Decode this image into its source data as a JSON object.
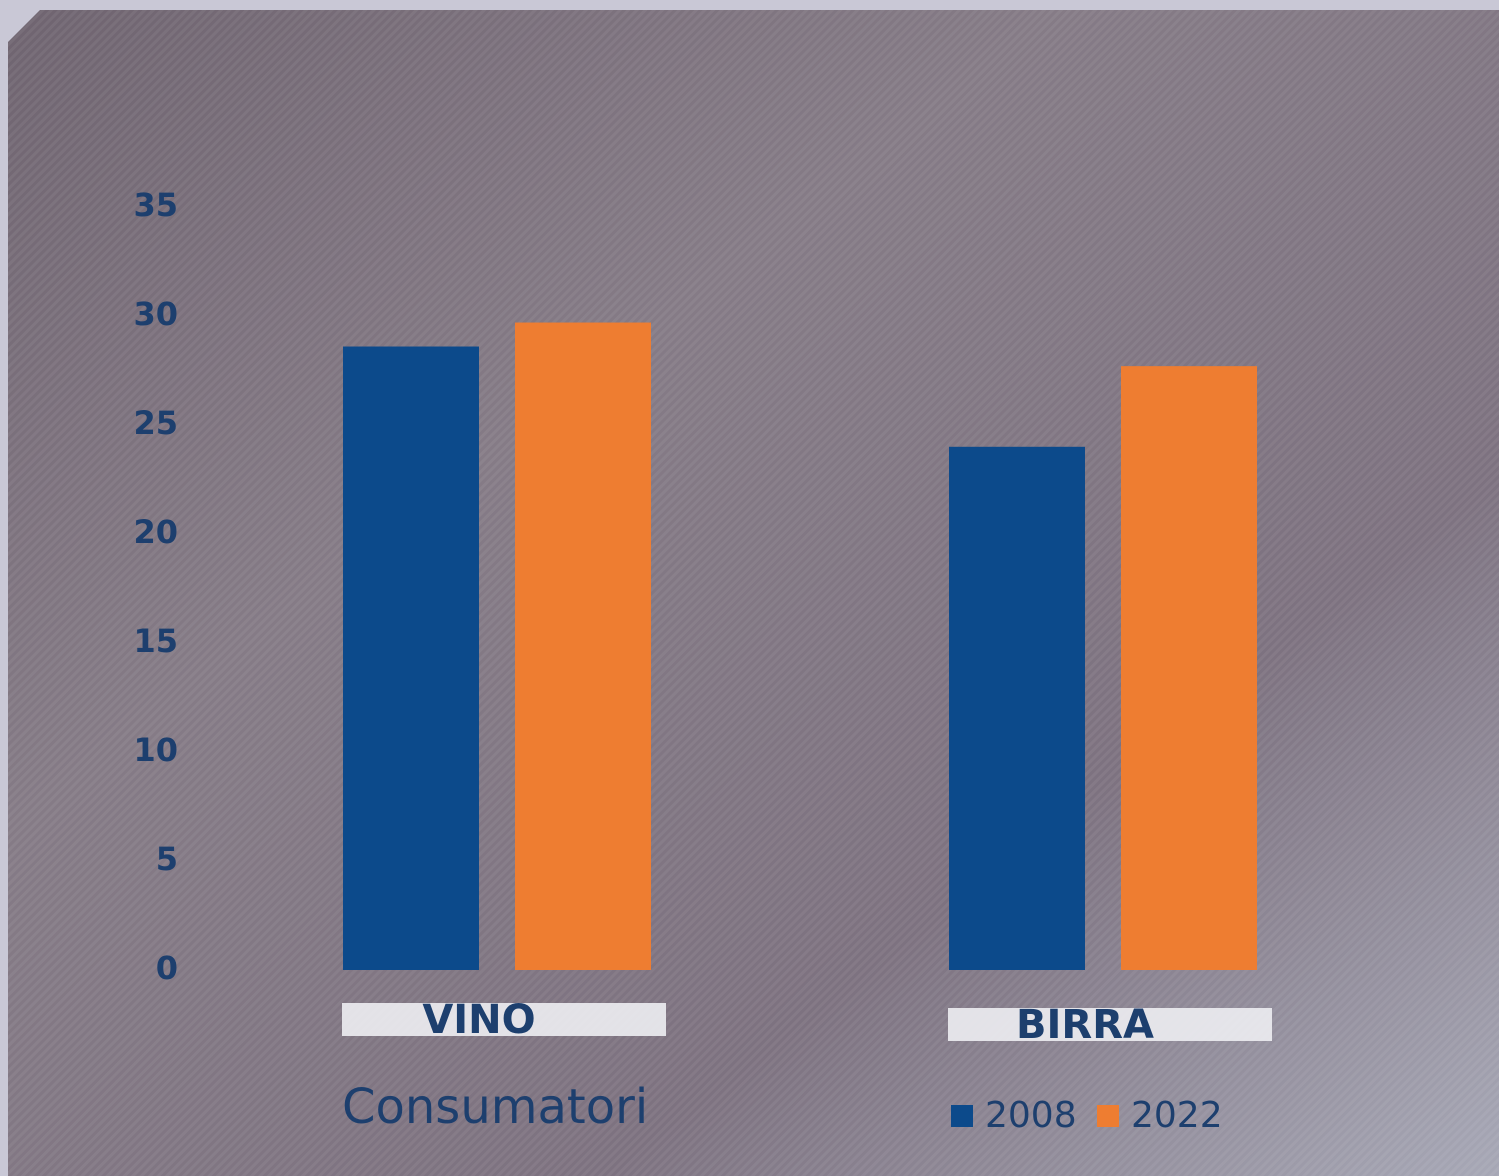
{
  "chart_data": {
    "type": "bar",
    "categories": [
      "VINO",
      "BIRRA"
    ],
    "series": [
      {
        "name": "2008",
        "color": "#0c4a8b",
        "values": [
          28.6,
          24.0
        ]
      },
      {
        "name": "2022",
        "color": "#ee7d31",
        "values": [
          29.7,
          27.7
        ]
      }
    ],
    "x_label": "Consumatori",
    "ylim": [
      0,
      35
    ],
    "yticks": [
      0,
      5,
      10,
      15,
      20,
      25,
      30,
      35
    ],
    "grid": false
  }
}
